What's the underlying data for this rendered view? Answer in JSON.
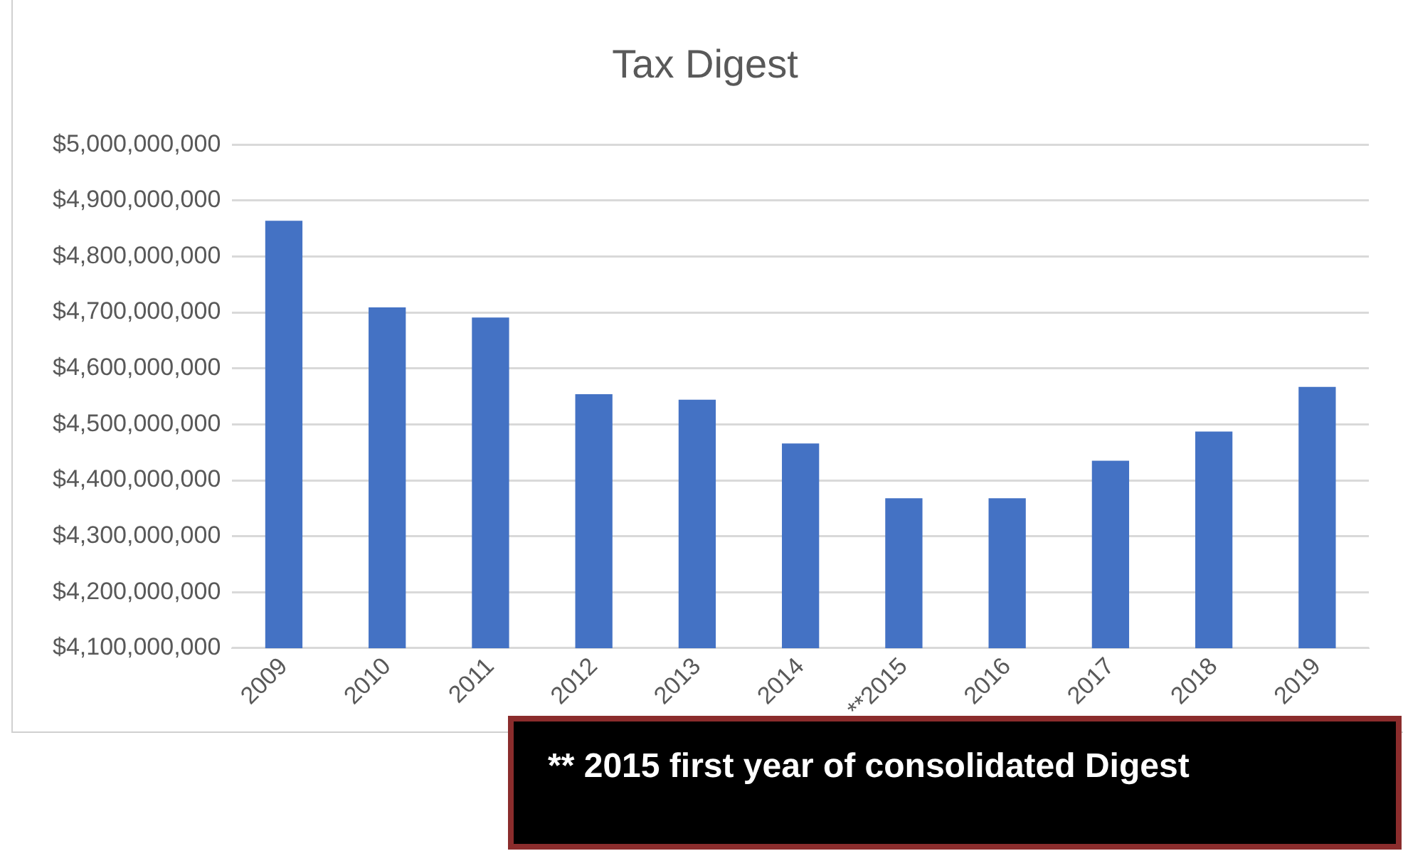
{
  "chart_data": {
    "type": "bar",
    "title": "Tax Digest",
    "categories": [
      "2009",
      "2010",
      "2011",
      "2012",
      "2013",
      "2014",
      "**2015",
      "2016",
      "2017",
      "2018",
      "2019"
    ],
    "values": [
      4864000000,
      4709000000,
      4691000000,
      4554000000,
      4544000000,
      4466000000,
      4368000000,
      4368000000,
      4435000000,
      4487000000,
      4567000000
    ],
    "color": "#4472c4",
    "ylim": [
      4100000000,
      5000000000
    ],
    "yticks": [
      {
        "value": 4100000000,
        "label": "$4,100,000,000"
      },
      {
        "value": 4200000000,
        "label": "$4,200,000,000"
      },
      {
        "value": 4300000000,
        "label": "$4,300,000,000"
      },
      {
        "value": 4400000000,
        "label": "$4,400,000,000"
      },
      {
        "value": 4500000000,
        "label": "$4,500,000,000"
      },
      {
        "value": 4600000000,
        "label": "$4,600,000,000"
      },
      {
        "value": 4700000000,
        "label": "$4,700,000,000"
      },
      {
        "value": 4800000000,
        "label": "$4,800,000,000"
      },
      {
        "value": 4900000000,
        "label": "$4,900,000,000"
      },
      {
        "value": 5000000000,
        "label": "$5,000,000,000"
      }
    ],
    "grid": "y",
    "legend": false,
    "annotations": [
      "** 2015 first year of consolidated Digest"
    ]
  }
}
